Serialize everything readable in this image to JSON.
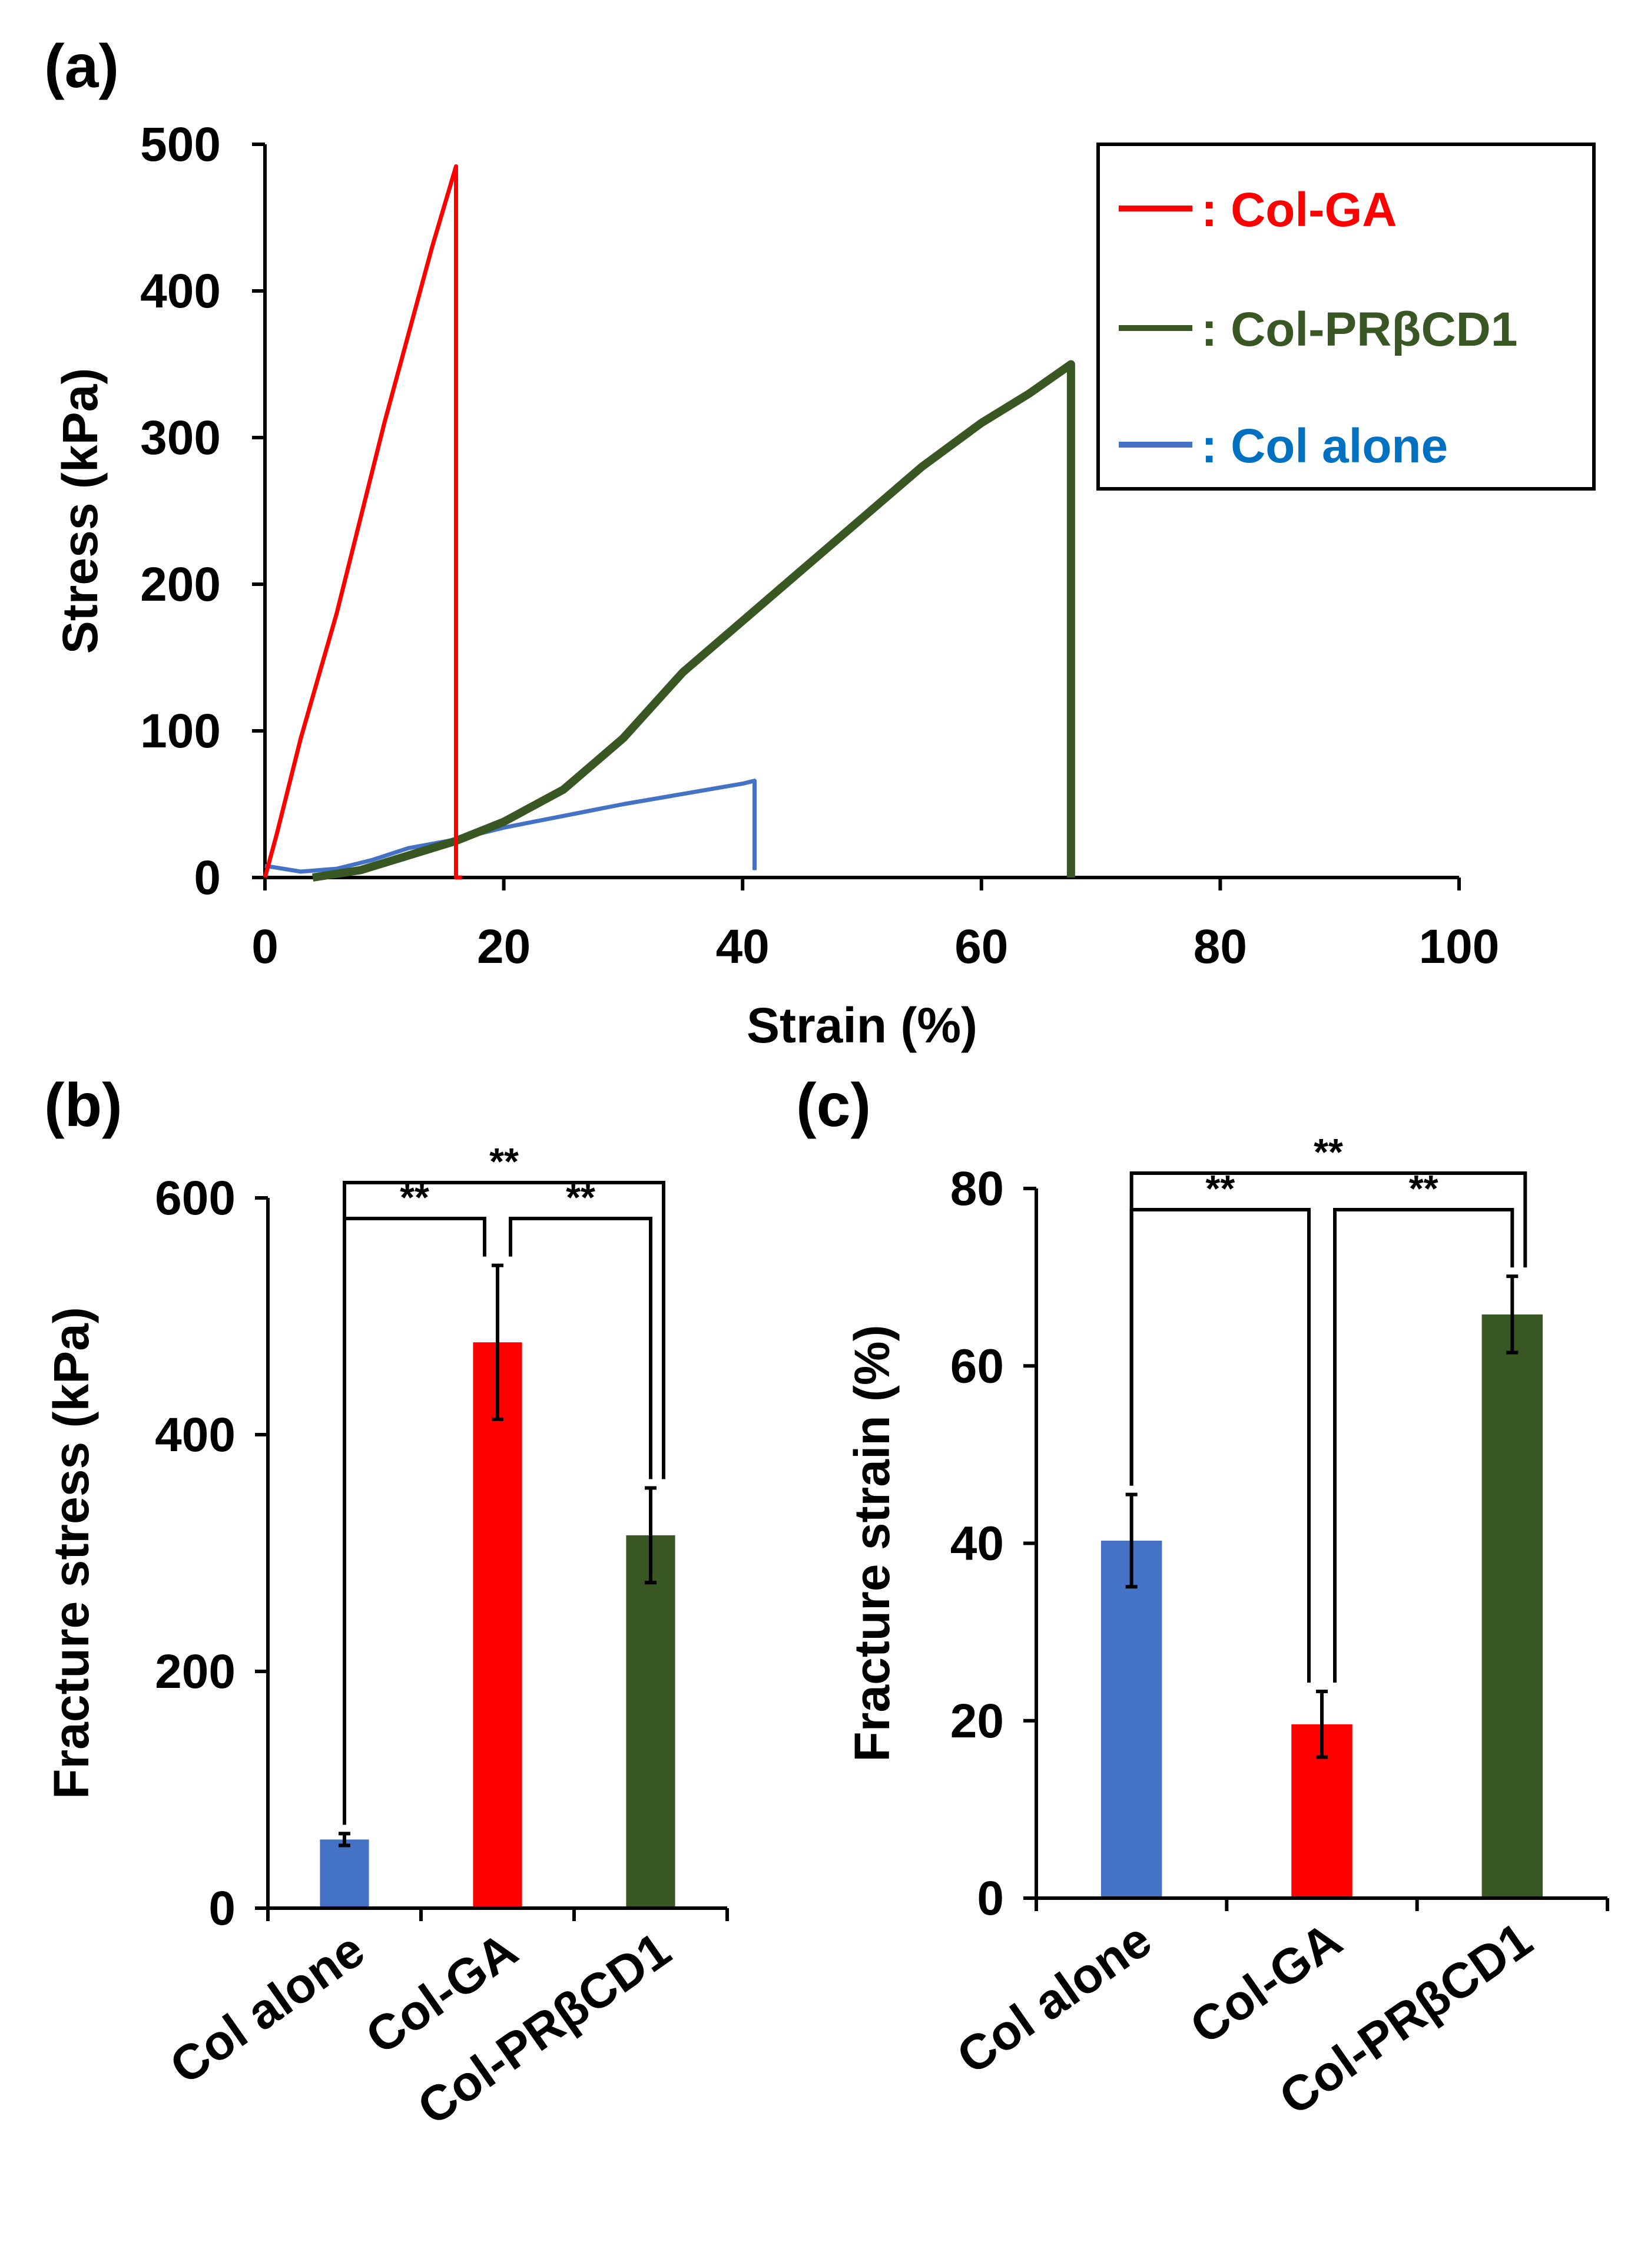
{
  "panels": {
    "a": "(a)",
    "b": "(b)",
    "c": "(c)"
  },
  "colors": {
    "col_ga": "#ff0000",
    "col_prbcd1": "#385723",
    "col_alone": "#4472c4",
    "legend_alone_text": "#0070c0"
  },
  "chart_data": [
    {
      "panel": "(a)",
      "type": "line",
      "xlabel": "Strain (%)",
      "ylabel": "Stress (kPa)",
      "xlim": [
        0,
        100
      ],
      "ylim": [
        0,
        500
      ],
      "xticks": [
        0,
        20,
        40,
        60,
        80,
        100
      ],
      "yticks": [
        0,
        100,
        200,
        300,
        400,
        500
      ],
      "legend_position": "top-right",
      "series": [
        {
          "name": ": Col-GA",
          "color": "#ff0000",
          "x": [
            0,
            1,
            3,
            6,
            10,
            14,
            16,
            16,
            16.5
          ],
          "y": [
            0,
            30,
            95,
            180,
            310,
            430,
            485,
            0,
            0
          ]
        },
        {
          "name": ": Col-PRβCD1",
          "color": "#385723",
          "x": [
            4,
            8,
            12,
            16,
            20,
            25,
            30,
            35,
            40,
            45,
            50,
            55,
            60,
            64,
            67.5,
            67.5
          ],
          "y": [
            0,
            5,
            15,
            25,
            38,
            60,
            95,
            140,
            175,
            210,
            245,
            280,
            310,
            330,
            350,
            0
          ]
        },
        {
          "name": ": Col alone",
          "color": "#4472c4",
          "x": [
            0,
            3,
            6,
            9,
            12,
            16,
            20,
            25,
            30,
            35,
            40,
            41,
            41
          ],
          "y": [
            8,
            4,
            6,
            12,
            20,
            26,
            34,
            42,
            50,
            57,
            64,
            66,
            5
          ]
        }
      ]
    },
    {
      "panel": "(b)",
      "type": "bar",
      "ylabel": "Fracture stress (kPa)",
      "ylim": [
        0,
        600
      ],
      "yticks": [
        0,
        200,
        400,
        600
      ],
      "categories": [
        "Col alone",
        "Col-GA",
        "Col-PRβCD1"
      ],
      "values": [
        58,
        478,
        315
      ],
      "errors": [
        5,
        65,
        40
      ],
      "bar_colors": [
        "#4472c4",
        "#ff0000",
        "#385723"
      ],
      "significance": [
        {
          "from": 0,
          "to": 1,
          "label": "**"
        },
        {
          "from": 1,
          "to": 2,
          "label": "**"
        },
        {
          "from": 0,
          "to": 2,
          "label": "**"
        }
      ]
    },
    {
      "panel": "(c)",
      "type": "bar",
      "ylabel": "Fracture strain (%)",
      "ylim": [
        0,
        80
      ],
      "yticks": [
        0,
        20,
        40,
        60,
        80
      ],
      "categories": [
        "Col alone",
        "Col-GA",
        "Col-PRβCD1"
      ],
      "values": [
        40.3,
        19.6,
        65.8
      ],
      "errors": [
        5.2,
        3.7,
        4.3
      ],
      "bar_colors": [
        "#4472c4",
        "#ff0000",
        "#385723"
      ],
      "significance": [
        {
          "from": 0,
          "to": 1,
          "label": "**"
        },
        {
          "from": 1,
          "to": 2,
          "label": "**"
        },
        {
          "from": 0,
          "to": 2,
          "label": "**"
        }
      ]
    }
  ]
}
